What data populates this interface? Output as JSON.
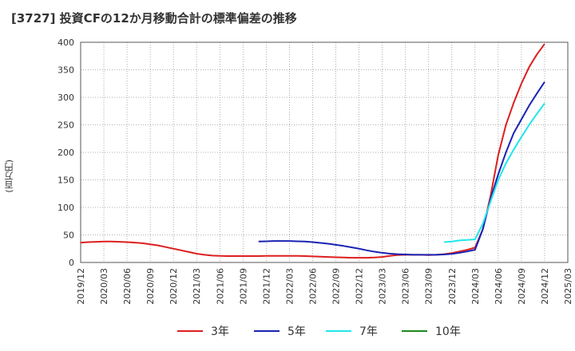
{
  "chart_data": {
    "type": "line",
    "title": "[3727]  投資CFの12か月移動合計の標準偏差の推移",
    "ylabel": "(百万円)",
    "xlabel": "",
    "ylim": [
      0,
      400
    ],
    "yticks": [
      "0",
      "50",
      "100",
      "150",
      "200",
      "250",
      "300",
      "350",
      "400"
    ],
    "xticks": [
      "2019/12",
      "2020/03",
      "2020/06",
      "2020/09",
      "2020/12",
      "2021/03",
      "2021/06",
      "2021/09",
      "2021/12",
      "2022/03",
      "2022/06",
      "2022/09",
      "2022/12",
      "2023/03",
      "2023/06",
      "2023/09",
      "2023/12",
      "2024/03",
      "2024/06",
      "2024/09",
      "2024/12",
      "2025/03"
    ],
    "grid": true,
    "legend_position": "bottom",
    "series": [
      {
        "name": "3年",
        "color": "#dd1f1f",
        "x": [
          "2019/12",
          "2020/01",
          "2020/02",
          "2020/03",
          "2020/04",
          "2020/05",
          "2020/06",
          "2020/07",
          "2020/08",
          "2020/09",
          "2020/10",
          "2020/11",
          "2020/12",
          "2021/01",
          "2021/02",
          "2021/03",
          "2021/04",
          "2021/05",
          "2021/06",
          "2021/07",
          "2021/08",
          "2021/09",
          "2021/10",
          "2021/11",
          "2021/12",
          "2022/01",
          "2022/02",
          "2022/03",
          "2022/04",
          "2022/05",
          "2022/06",
          "2022/07",
          "2022/08",
          "2022/09",
          "2022/10",
          "2022/11",
          "2022/12",
          "2023/01",
          "2023/02",
          "2023/03",
          "2023/04",
          "2023/05",
          "2023/06",
          "2023/07",
          "2023/08",
          "2023/09",
          "2023/10",
          "2023/11",
          "2023/12",
          "2024/01",
          "2024/02",
          "2024/03",
          "2024/04",
          "2024/05",
          "2024/06",
          "2024/07",
          "2024/08",
          "2024/09",
          "2024/10",
          "2024/11",
          "2024/12"
        ],
        "values": [
          36,
          37,
          37.5,
          38,
          38,
          37.5,
          37,
          36,
          35,
          33,
          31,
          28,
          25,
          22,
          19,
          16,
          14,
          12.5,
          12,
          11.5,
          11.5,
          11.5,
          11.5,
          11.5,
          12,
          12,
          12,
          12,
          12,
          11.5,
          11,
          10.5,
          10,
          9.5,
          9,
          8.5,
          8.5,
          8.5,
          9,
          10,
          12,
          13.5,
          14,
          14,
          14,
          13.5,
          14,
          15,
          17,
          20,
          23,
          27,
          60,
          120,
          195,
          250,
          290,
          325,
          355,
          378,
          397
        ]
      },
      {
        "name": "5年",
        "color": "#1a23b3",
        "x": [
          "2021/11",
          "2021/12",
          "2022/01",
          "2022/02",
          "2022/03",
          "2022/04",
          "2022/05",
          "2022/06",
          "2022/07",
          "2022/08",
          "2022/09",
          "2022/10",
          "2022/11",
          "2022/12",
          "2023/01",
          "2023/02",
          "2023/03",
          "2023/04",
          "2023/05",
          "2023/06",
          "2023/07",
          "2023/08",
          "2023/09",
          "2023/10",
          "2023/11",
          "2023/12",
          "2024/01",
          "2024/02",
          "2024/03",
          "2024/04",
          "2024/05",
          "2024/06",
          "2024/07",
          "2024/08",
          "2024/09",
          "2024/10",
          "2024/11",
          "2024/12"
        ],
        "values": [
          38,
          38.5,
          39,
          39,
          39,
          38.5,
          38,
          37,
          35.5,
          34,
          32,
          30,
          27.5,
          25,
          22,
          19.5,
          17.5,
          16,
          15,
          14.5,
          14,
          14,
          14,
          14,
          14.5,
          15.5,
          17.5,
          20,
          23,
          60,
          115,
          160,
          200,
          235,
          260,
          285,
          307,
          328
        ]
      },
      {
        "name": "7年",
        "color": "#22e5ea",
        "x": [
          "2023/11",
          "2023/12",
          "2024/01",
          "2024/02",
          "2024/03",
          "2024/04",
          "2024/05",
          "2024/06",
          "2024/07",
          "2024/08",
          "2024/09",
          "2024/10",
          "2024/11",
          "2024/12"
        ],
        "values": [
          37,
          38,
          40,
          41,
          42,
          70,
          110,
          150,
          180,
          205,
          228,
          250,
          270,
          289
        ]
      },
      {
        "name": "10年",
        "color": "#1e8a1e",
        "x": [],
        "values": []
      }
    ]
  }
}
